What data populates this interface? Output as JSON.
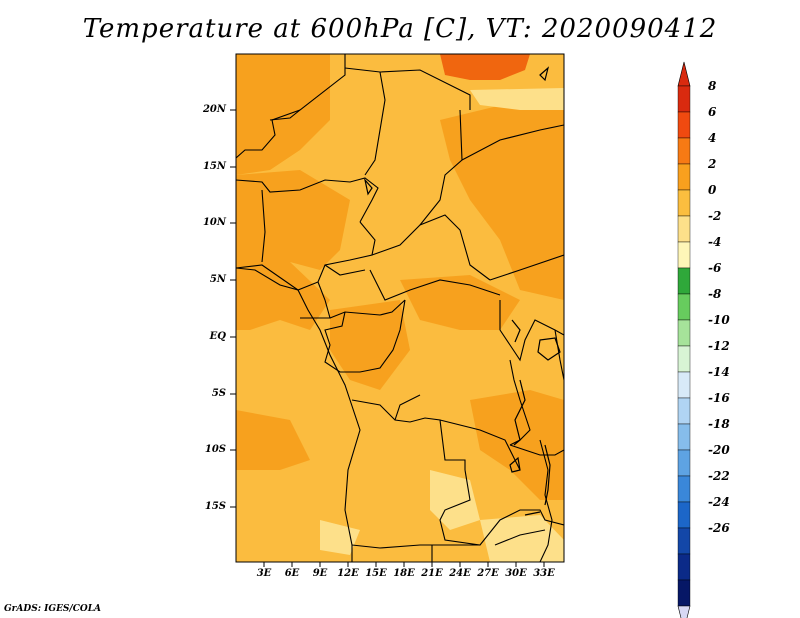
{
  "title": "Temperature at 600hPa [C], VT: 2020090412",
  "credit": "GrADS: IGES/COLA",
  "lat_labels": [
    "20N",
    "15N",
    "10N",
    "5N",
    "EQ",
    "5S",
    "10S",
    "15S"
  ],
  "lon_labels": [
    "3E",
    "6E",
    "9E",
    "12E",
    "15E",
    "18E",
    "21E",
    "24E",
    "27E",
    "30E",
    "33E"
  ],
  "colorbar": {
    "labels": [
      "8",
      "6",
      "4",
      "2",
      "0",
      "-2",
      "-4",
      "-6",
      "-8",
      "-10",
      "-12",
      "-14",
      "-16",
      "-18",
      "-20",
      "-22",
      "-24",
      "-26"
    ],
    "colors": [
      "#d92a0f",
      "#f04a10",
      "#f77a14",
      "#f9a01e",
      "#fbbe3f",
      "#fde08a",
      "#fef6b8",
      "#2fa83a",
      "#67cc5e",
      "#a6e39a",
      "#d8f4d4",
      "#d8eaf8",
      "#b0d4f3",
      "#86bdeb",
      "#5ea3e3",
      "#3a87d9",
      "#1c66c8",
      "#1347a8",
      "#0b2a88",
      "#061766"
    ],
    "top_arrow_color": "#d92a0f",
    "bottom_arrow_color": "#d7d8f4"
  },
  "field_colors": {
    "base": "#fbbc3f",
    "warm": "#f7a11e",
    "hot": "#f0660f",
    "cool": "#fde08a"
  }
}
